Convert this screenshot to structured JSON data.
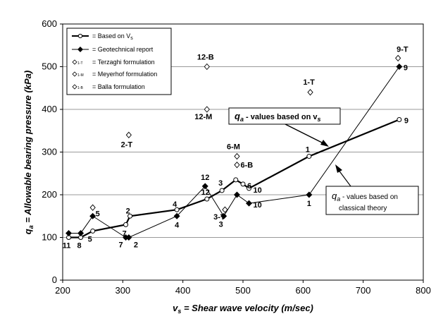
{
  "chart_data": {
    "type": "scatter",
    "xlim": [
      200,
      800
    ],
    "ylim": [
      0,
      600
    ],
    "x_ticks": [
      "200",
      "300",
      "400",
      "500",
      "600",
      "700",
      "800"
    ],
    "y_ticks": [
      "0",
      "100",
      "200",
      "300",
      "400",
      "500",
      "600"
    ],
    "grid": "horizontal",
    "legend_position": "top-left",
    "xlabel_parts": [
      "v",
      "s",
      " = Shear wave velocity (m/sec)"
    ],
    "ylabel_parts": [
      "q",
      "a",
      " = Allowable bearing pressure (kPa)"
    ],
    "series": [
      {
        "name": "= Based on Vs",
        "marker": "open-circle",
        "line": "thick",
        "points": [
          {
            "x": 210,
            "y": 100,
            "label": "11"
          },
          {
            "x": 230,
            "y": 100,
            "label": "8"
          },
          {
            "x": 250,
            "y": 115,
            "label": "5"
          },
          {
            "x": 305,
            "y": 130,
            "label": "7"
          },
          {
            "x": 312,
            "y": 150,
            "label": "2"
          },
          {
            "x": 390,
            "y": 165,
            "label": "4"
          },
          {
            "x": 440,
            "y": 190,
            "label": "12"
          },
          {
            "x": 465,
            "y": 210,
            "label": "3"
          },
          {
            "x": 488,
            "y": 235,
            "label": ""
          },
          {
            "x": 500,
            "y": 225,
            "label": "6"
          },
          {
            "x": 510,
            "y": 215,
            "label": "10"
          },
          {
            "x": 610,
            "y": 290,
            "label": "1"
          },
          {
            "x": 760,
            "y": 376,
            "label": "9"
          }
        ]
      },
      {
        "name": "= Geotechnical report",
        "marker": "filled-diamond",
        "line": "thin",
        "points": [
          {
            "x": 210,
            "y": 110,
            "label": ""
          },
          {
            "x": 230,
            "y": 110,
            "label": ""
          },
          {
            "x": 250,
            "y": 150,
            "label": "5"
          },
          {
            "x": 305,
            "y": 100,
            "label": "7"
          },
          {
            "x": 310,
            "y": 100,
            "label": "2"
          },
          {
            "x": 390,
            "y": 150,
            "label": "4"
          },
          {
            "x": 437,
            "y": 220,
            "label": "12"
          },
          {
            "x": 468,
            "y": 150,
            "label": "3"
          },
          {
            "x": 490,
            "y": 200,
            "label": ""
          },
          {
            "x": 510,
            "y": 180,
            "label": "10"
          },
          {
            "x": 610,
            "y": 200,
            "label": "1"
          },
          {
            "x": 760,
            "y": 500,
            "label": "9"
          }
        ]
      },
      {
        "name": "= Terzaghi formulation",
        "marker": "open-diamond",
        "line": "none",
        "points": [
          {
            "x": 310,
            "y": 340,
            "label": "2-T"
          },
          {
            "x": 470,
            "y": 165,
            "label": "3-T"
          },
          {
            "x": 612,
            "y": 440,
            "label": "1-T"
          },
          {
            "x": 758,
            "y": 520,
            "label": "9-T"
          }
        ]
      },
      {
        "name": "= Meyerhof formulation",
        "marker": "open-diamond",
        "line": "none",
        "points": [
          {
            "x": 440,
            "y": 400,
            "label": "12-M"
          },
          {
            "x": 490,
            "y": 290,
            "label": "6-M"
          }
        ]
      },
      {
        "name": "= Balla formulation",
        "marker": "open-diamond",
        "line": "none",
        "points": [
          {
            "x": 440,
            "y": 500,
            "label": "12-B"
          },
          {
            "x": 490,
            "y": 270,
            "label": "6-B"
          },
          {
            "x": 250,
            "y": 170,
            "label": ""
          }
        ]
      }
    ],
    "legend_subscripts": [
      "s",
      "1-T",
      "1-M",
      "1-B"
    ],
    "annotations": [
      {
        "id": "vs",
        "lines": [
          "q",
          "a",
          " - values based on v",
          "s"
        ]
      },
      {
        "id": "classical",
        "lines": [
          "q",
          "a",
          " - values based on",
          "classical theory"
        ]
      }
    ]
  }
}
